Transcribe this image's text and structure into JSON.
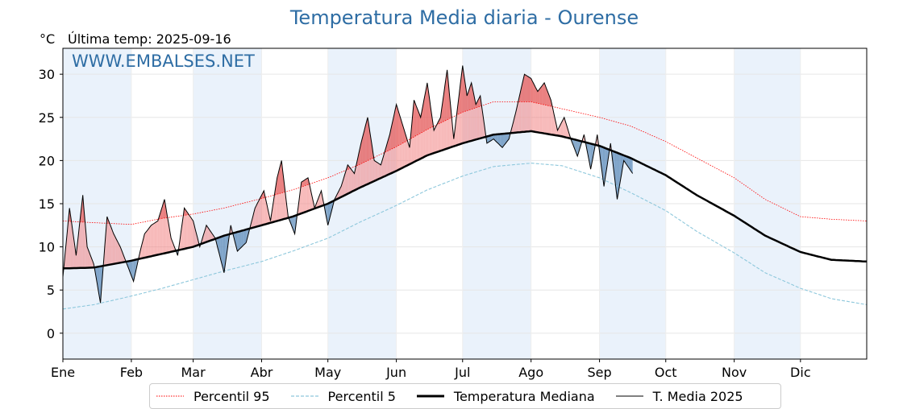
{
  "title": "Temperatura Media diaria - Ourense",
  "unit": "°C",
  "last_temp": "Última temp: 2025-09-16",
  "watermark": "WWW.EMBALSES.NET",
  "colors": {
    "title": "#2e6da4",
    "p95": "#ff0000",
    "p5": "#8ec8dc",
    "median": "#000000",
    "current": "#000000",
    "above_fill": "#f08080",
    "below_fill": "#4f81b4",
    "month_band": "#eaf2fb"
  },
  "chart_data": {
    "type": "line",
    "title": "Temperatura Media diaria - Ourense",
    "ylabel": "°C",
    "ylim": [
      -3,
      33
    ],
    "yticks": [
      0,
      5,
      10,
      15,
      20,
      25,
      30
    ],
    "x_ticks": [
      "Ene",
      "Feb",
      "Mar",
      "Abr",
      "May",
      "Jun",
      "Jul",
      "Ago",
      "Sep",
      "Oct",
      "Nov",
      "Dic"
    ],
    "month_days": [
      1,
      32,
      60,
      91,
      121,
      152,
      182,
      213,
      244,
      274,
      305,
      335
    ],
    "grid": true,
    "legend_position": "bottom-center",
    "series": [
      {
        "name": "Percentil 95",
        "style": "dotted-red",
        "x": [
          1,
          15,
          32,
          46,
          60,
          74,
          91,
          105,
          121,
          135,
          152,
          166,
          182,
          196,
          213,
          227,
          244,
          258,
          274,
          288,
          305,
          319,
          335,
          349,
          365
        ],
        "y": [
          13,
          12.8,
          12.6,
          13.3,
          13.8,
          14.5,
          15.6,
          16.6,
          18.0,
          19.5,
          21.6,
          23.6,
          25.6,
          26.8,
          26.8,
          26.0,
          25.0,
          24.0,
          22.2,
          20.3,
          18.0,
          15.5,
          13.5,
          13.2,
          13.0
        ]
      },
      {
        "name": "Percentil 5",
        "style": "dashed-lightblue",
        "x": [
          1,
          15,
          32,
          46,
          60,
          74,
          91,
          105,
          121,
          135,
          152,
          166,
          182,
          196,
          213,
          227,
          244,
          258,
          274,
          288,
          305,
          319,
          335,
          349,
          365
        ],
        "y": [
          2.8,
          3.3,
          4.3,
          5.2,
          6.2,
          7.2,
          8.3,
          9.5,
          11.0,
          12.8,
          14.8,
          16.6,
          18.2,
          19.3,
          19.7,
          19.4,
          18.0,
          16.3,
          14.2,
          11.8,
          9.3,
          7.0,
          5.2,
          4.0,
          3.3
        ]
      },
      {
        "name": "Temperatura Mediana",
        "style": "thick-black",
        "x": [
          1,
          15,
          32,
          46,
          60,
          74,
          91,
          105,
          121,
          135,
          152,
          166,
          182,
          196,
          213,
          227,
          244,
          258,
          274,
          288,
          305,
          319,
          335,
          349,
          365
        ],
        "y": [
          7.5,
          7.6,
          8.4,
          9.2,
          10.0,
          11.3,
          12.5,
          13.5,
          15.0,
          16.8,
          18.8,
          20.6,
          22.0,
          23.0,
          23.4,
          22.8,
          21.7,
          20.3,
          18.3,
          16.0,
          13.6,
          11.3,
          9.4,
          8.5,
          8.3
        ]
      },
      {
        "name": "T. Media 2025",
        "style": "thin-black",
        "x": [
          1,
          4,
          7,
          10,
          12,
          15,
          18,
          21,
          24,
          27,
          30,
          33,
          36,
          38,
          41,
          44,
          47,
          50,
          53,
          56,
          60,
          63,
          66,
          70,
          74,
          77,
          80,
          84,
          88,
          92,
          95,
          98,
          100,
          103,
          106,
          109,
          112,
          115,
          118,
          121,
          124,
          127,
          130,
          133,
          136,
          139,
          142,
          145,
          149,
          152,
          155,
          158,
          160,
          163,
          166,
          169,
          172,
          175,
          178,
          182,
          184,
          186,
          188,
          190,
          193,
          196,
          200,
          203,
          206,
          210,
          213,
          216,
          219,
          222,
          225,
          228,
          231,
          234,
          237,
          240,
          243,
          246,
          249,
          252,
          255,
          259
        ],
        "y": [
          6.5,
          14.5,
          9.0,
          16.0,
          10.0,
          8.0,
          3.5,
          13.5,
          11.5,
          10.0,
          8.0,
          6.0,
          9.5,
          11.5,
          12.5,
          13.0,
          15.5,
          11.0,
          9.0,
          14.5,
          13.0,
          10.0,
          12.5,
          11.0,
          7.0,
          12.5,
          9.5,
          10.5,
          14.5,
          16.5,
          13.0,
          18.0,
          20.0,
          13.5,
          11.5,
          17.5,
          18.0,
          14.5,
          16.5,
          12.5,
          15.5,
          17.0,
          19.5,
          18.5,
          22.0,
          25.0,
          20.0,
          19.5,
          23.0,
          26.5,
          24.0,
          21.5,
          27.0,
          25.0,
          29.0,
          23.5,
          25.0,
          30.5,
          22.5,
          31.0,
          27.5,
          29.0,
          26.5,
          27.5,
          22.0,
          22.5,
          21.5,
          22.5,
          25.5,
          30.0,
          29.5,
          28.0,
          29.0,
          27.0,
          23.5,
          25.0,
          22.5,
          20.5,
          23.0,
          19.0,
          23.0,
          17.0,
          22.0,
          15.5,
          20.0,
          18.5
        ]
      }
    ]
  },
  "legend": {
    "p95": "Percentil 95",
    "p5": "Percentil 5",
    "median": "Temperatura Mediana",
    "current": "T. Media 2025"
  }
}
